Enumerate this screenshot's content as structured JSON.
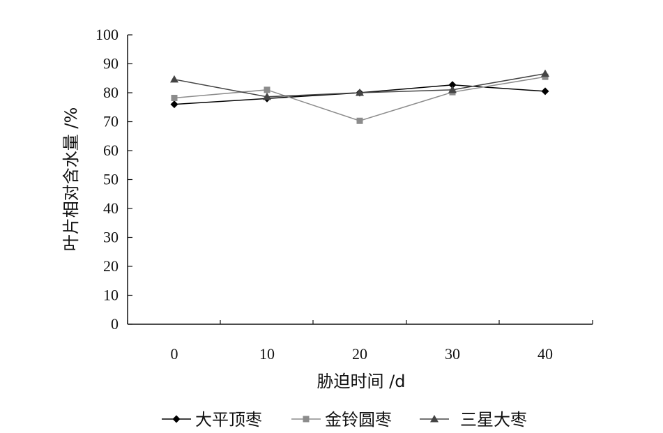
{
  "chart_data": {
    "type": "line",
    "x": [
      0,
      10,
      20,
      30,
      40
    ],
    "xlabel": "胁迫时间 /d",
    "ylabel": "叶片相对含水量 /%",
    "ylim": [
      0,
      100
    ],
    "yticks": [
      0,
      10,
      20,
      30,
      40,
      50,
      60,
      70,
      80,
      90,
      100
    ],
    "legend_position": "bottom",
    "grid": false,
    "series": [
      {
        "name": "大平顶枣",
        "marker": "diamond",
        "color": "#000000",
        "values": [
          76,
          78,
          80,
          82.7,
          80.5
        ]
      },
      {
        "name": "金铃圆枣",
        "marker": "square",
        "color": "#8c8c8c",
        "values": [
          78.2,
          81,
          70.3,
          80.2,
          85.5
        ]
      },
      {
        "name": "三星大枣",
        "marker": "triangle",
        "color": "#444444",
        "values": [
          84.6,
          78.6,
          80,
          81,
          86.6
        ]
      }
    ]
  }
}
